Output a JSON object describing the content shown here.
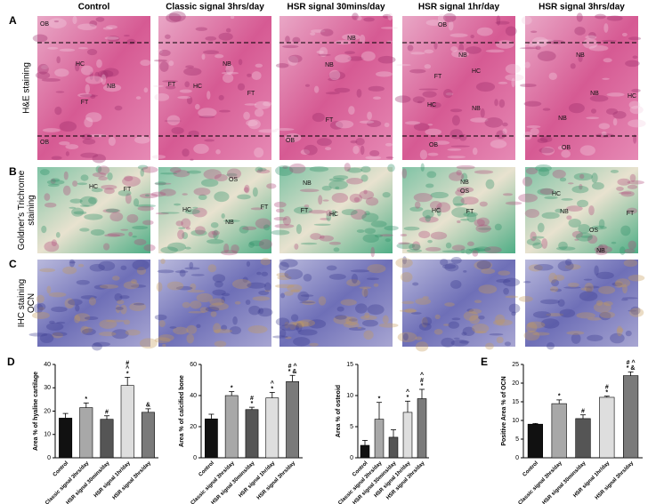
{
  "column_headers": [
    "Control",
    "Classic signal 3hrs/day",
    "HSR signal 30mins/day",
    "HSR signal 1hr/day",
    "HSR signal 3hrs/day"
  ],
  "rows": [
    {
      "letter": "A",
      "label": [
        "H&E staining"
      ],
      "annotations": [
        [
          "OB",
          "HC",
          "NB",
          "FT",
          "OB"
        ],
        [
          "FT",
          "HC",
          "FT",
          "NB"
        ],
        [
          "NB",
          "NB",
          "FT",
          "OB"
        ],
        [
          "OB",
          "NB",
          "HC",
          "FT",
          "HC",
          "NB",
          "OB"
        ],
        [
          "NB",
          "NB",
          "HC",
          "NB",
          "OB"
        ]
      ]
    },
    {
      "letter": "B",
      "label": [
        "Goldner's Trichrome",
        "staining"
      ],
      "annotations": [
        [
          "HC",
          "FT"
        ],
        [
          "OS",
          "FT",
          "HC",
          "NB"
        ],
        [
          "NB",
          "FT",
          "HC"
        ],
        [
          "NB",
          "OS",
          "HC",
          "FT"
        ],
        [
          "HC",
          "NB",
          "FT",
          "OS",
          "NB"
        ]
      ]
    },
    {
      "letter": "C",
      "label": [
        "IHC staining",
        "OCN"
      ],
      "annotations": [
        [],
        [],
        [],
        [],
        []
      ]
    }
  ],
  "panel_letters": [
    "D",
    "E"
  ],
  "chart_data": [
    {
      "type": "bar",
      "y_label": "Area % of hyaline cartilage",
      "categories": [
        "Control",
        "Classic signal 3hrs/day",
        "HSR signal 30mins/day",
        "HSR signal 1hr/day",
        "HSR signal 3hrs/day"
      ],
      "colors": [
        "#111111",
        "#a8a8a8",
        "#555555",
        "#dedede",
        "#7a7a7a"
      ],
      "values": [
        17,
        21.5,
        16.5,
        31,
        19.5
      ],
      "errors": [
        2,
        2,
        1.5,
        3.5,
        1.5
      ],
      "significance": [
        null,
        [
          "*"
        ],
        [
          "#"
        ],
        [
          "#",
          "^",
          "*"
        ],
        [
          "&"
        ]
      ],
      "ylim": [
        0,
        40
      ],
      "yticks": [
        0,
        10,
        20,
        30,
        40
      ]
    },
    {
      "type": "bar",
      "y_label": "Area % of calcified bone",
      "categories": [
        "Control",
        "Classic signal 3hrs/day",
        "HSR signal 30mins/day",
        "HSR signal 1hr/day",
        "HSR signal 3hrs/day"
      ],
      "colors": [
        "#111111",
        "#a8a8a8",
        "#555555",
        "#dedede",
        "#7a7a7a"
      ],
      "values": [
        25,
        40,
        31,
        38.5,
        49
      ],
      "errors": [
        3,
        2.5,
        1.5,
        3.5,
        4
      ],
      "significance": [
        null,
        [
          "*"
        ],
        [
          "#",
          "*"
        ],
        [
          "^",
          "*"
        ],
        [
          "# ^",
          "* &"
        ]
      ],
      "ylim": [
        0,
        60
      ],
      "yticks": [
        0,
        20,
        40,
        60
      ]
    },
    {
      "type": "bar",
      "y_label": "Area % of osteoid",
      "categories": [
        "Control",
        "Classic signal 3hrs/day",
        "HSR signal 30mins/day",
        "HSR signal 1hr/day",
        "HSR signal 3hrs/day"
      ],
      "colors": [
        "#111111",
        "#a8a8a8",
        "#555555",
        "#dedede",
        "#7a7a7a"
      ],
      "values": [
        2,
        6.2,
        3.3,
        7.3,
        9.5
      ],
      "errors": [
        0.8,
        2.7,
        1.2,
        1.8,
        1.5
      ],
      "significance": [
        null,
        [
          "*"
        ],
        null,
        [
          "^",
          "*"
        ],
        [
          "^",
          "#",
          "*"
        ]
      ],
      "ylim": [
        0,
        15
      ],
      "yticks": [
        0,
        5,
        10,
        15
      ]
    },
    {
      "type": "bar",
      "y_label": "Positive Area % of OCN",
      "categories": [
        "Control",
        "Classic signal 3hrs/day",
        "HSR signal 30mins/day",
        "HSR signal 1hr/day",
        "HSR signal 3hrs/day"
      ],
      "colors": [
        "#111111",
        "#a8a8a8",
        "#555555",
        "#dedede",
        "#7a7a7a"
      ],
      "values": [
        9,
        14.5,
        10.5,
        16.2,
        22
      ],
      "errors": [
        0.2,
        1,
        1,
        0.3,
        1
      ],
      "significance": [
        null,
        [
          "*"
        ],
        [
          "#"
        ],
        [
          "#",
          "*"
        ],
        [
          "# ^",
          "* &"
        ]
      ],
      "ylim": [
        0,
        25
      ],
      "yticks": [
        0,
        5,
        10,
        15,
        20,
        25
      ]
    }
  ]
}
